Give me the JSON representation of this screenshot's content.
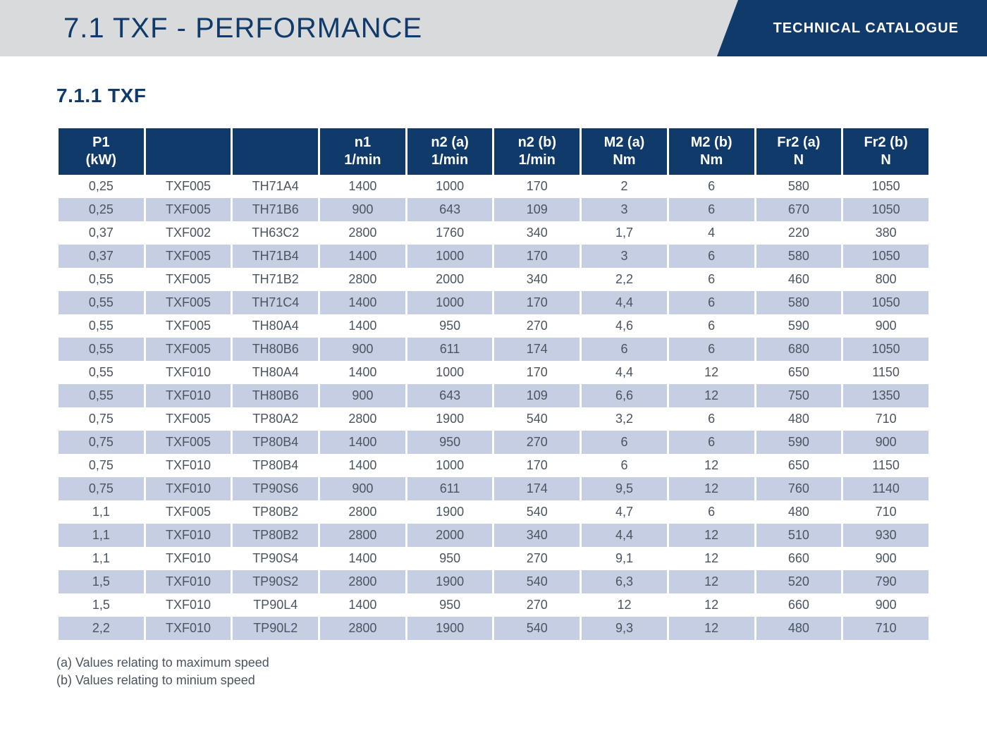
{
  "header": {
    "title": "7.1 TXF - PERFORMANCE",
    "badge": "TECHNICAL CATALOGUE"
  },
  "section": {
    "title": "7.1.1 TXF"
  },
  "table": {
    "columns": [
      {
        "line1": "P1",
        "line2": "(kW)"
      },
      {
        "line1": "",
        "line2": ""
      },
      {
        "line1": "",
        "line2": ""
      },
      {
        "line1": "n1",
        "line2": "1/min"
      },
      {
        "line1": "n2 (a)",
        "line2": "1/min"
      },
      {
        "line1": "n2 (b)",
        "line2": "1/min"
      },
      {
        "line1": "M2 (a)",
        "line2": "Nm"
      },
      {
        "line1": "M2 (b)",
        "line2": "Nm"
      },
      {
        "line1": "Fr2 (a)",
        "line2": "N"
      },
      {
        "line1": "Fr2 (b)",
        "line2": "N"
      }
    ],
    "rows": [
      [
        "0,25",
        "TXF005",
        "TH71A4",
        "1400",
        "1000",
        "170",
        "2",
        "6",
        "580",
        "1050"
      ],
      [
        "0,25",
        "TXF005",
        "TH71B6",
        "900",
        "643",
        "109",
        "3",
        "6",
        "670",
        "1050"
      ],
      [
        "0,37",
        "TXF002",
        "TH63C2",
        "2800",
        "1760",
        "340",
        "1,7",
        "4",
        "220",
        "380"
      ],
      [
        "0,37",
        "TXF005",
        "TH71B4",
        "1400",
        "1000",
        "170",
        "3",
        "6",
        "580",
        "1050"
      ],
      [
        "0,55",
        "TXF005",
        "TH71B2",
        "2800",
        "2000",
        "340",
        "2,2",
        "6",
        "460",
        "800"
      ],
      [
        "0,55",
        "TXF005",
        "TH71C4",
        "1400",
        "1000",
        "170",
        "4,4",
        "6",
        "580",
        "1050"
      ],
      [
        "0,55",
        "TXF005",
        "TH80A4",
        "1400",
        "950",
        "270",
        "4,6",
        "6",
        "590",
        "900"
      ],
      [
        "0,55",
        "TXF005",
        "TH80B6",
        "900",
        "611",
        "174",
        "6",
        "6",
        "680",
        "1050"
      ],
      [
        "0,55",
        "TXF010",
        "TH80A4",
        "1400",
        "1000",
        "170",
        "4,4",
        "12",
        "650",
        "1150"
      ],
      [
        "0,55",
        "TXF010",
        "TH80B6",
        "900",
        "643",
        "109",
        "6,6",
        "12",
        "750",
        "1350"
      ],
      [
        "0,75",
        "TXF005",
        "TP80A2",
        "2800",
        "1900",
        "540",
        "3,2",
        "6",
        "480",
        "710"
      ],
      [
        "0,75",
        "TXF005",
        "TP80B4",
        "1400",
        "950",
        "270",
        "6",
        "6",
        "590",
        "900"
      ],
      [
        "0,75",
        "TXF010",
        "TP80B4",
        "1400",
        "1000",
        "170",
        "6",
        "12",
        "650",
        "1150"
      ],
      [
        "0,75",
        "TXF010",
        "TP90S6",
        "900",
        "611",
        "174",
        "9,5",
        "12",
        "760",
        "1140"
      ],
      [
        "1,1",
        "TXF005",
        "TP80B2",
        "2800",
        "1900",
        "540",
        "4,7",
        "6",
        "480",
        "710"
      ],
      [
        "1,1",
        "TXF010",
        "TP80B2",
        "2800",
        "2000",
        "340",
        "4,4",
        "12",
        "510",
        "930"
      ],
      [
        "1,1",
        "TXF010",
        "TP90S4",
        "1400",
        "950",
        "270",
        "9,1",
        "12",
        "660",
        "900"
      ],
      [
        "1,5",
        "TXF010",
        "TP90S2",
        "2800",
        "1900",
        "540",
        "6,3",
        "12",
        "520",
        "790"
      ],
      [
        "1,5",
        "TXF010",
        "TP90L4",
        "1400",
        "950",
        "270",
        "12",
        "12",
        "660",
        "900"
      ],
      [
        "2,2",
        "TXF010",
        "TP90L2",
        "2800",
        "1900",
        "540",
        "9,3",
        "12",
        "480",
        "710"
      ]
    ]
  },
  "footnotes": [
    "(a) Values relating to maximum speed",
    "(b) Values relating to minium speed"
  ],
  "styling": {
    "header_bg": "#d9dadb",
    "accent": "#0f3a6a",
    "row_odd_bg": "#c5cee3",
    "row_even_bg": "#ffffff",
    "text_color": "#4a5560"
  }
}
